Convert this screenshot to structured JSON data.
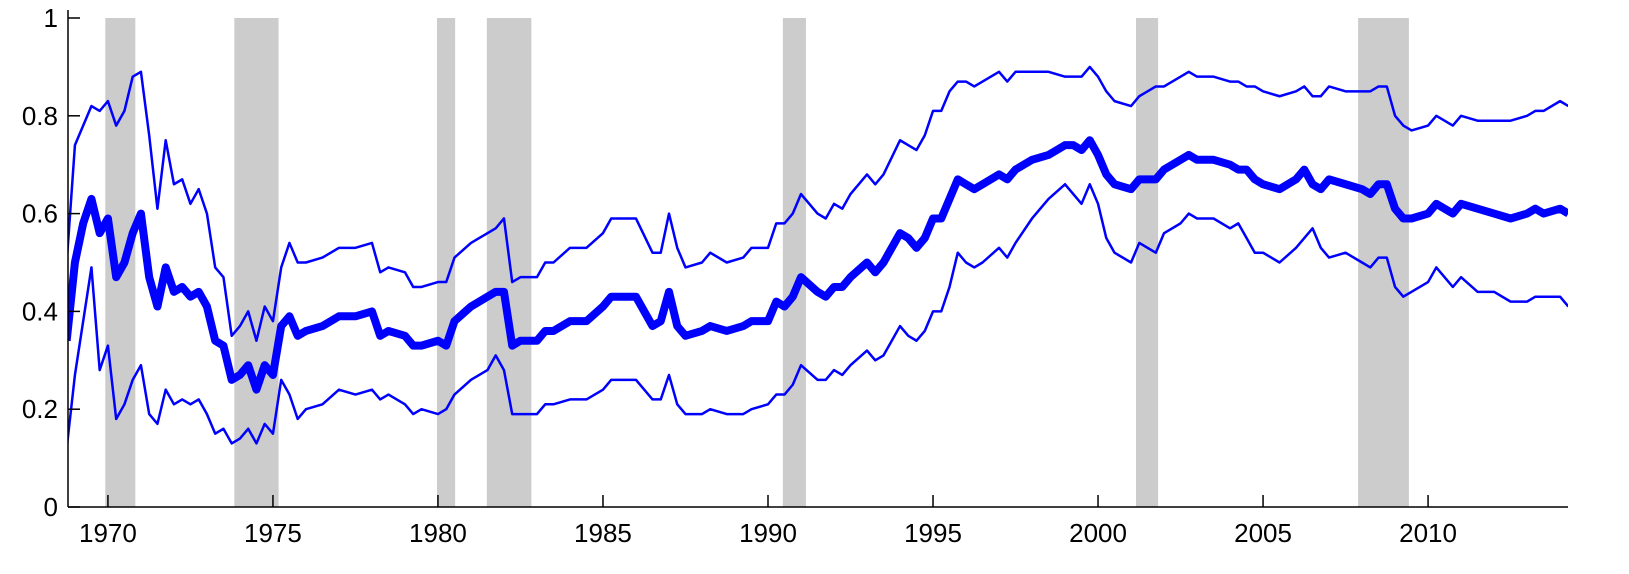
{
  "chart_data": {
    "type": "line",
    "x": [
      1968.75,
      1969.0,
      1969.25,
      1969.5,
      1969.75,
      1970.0,
      1970.25,
      1970.5,
      1970.75,
      1971.0,
      1971.25,
      1971.5,
      1971.75,
      1972.0,
      1972.25,
      1972.5,
      1972.75,
      1973.0,
      1973.25,
      1973.5,
      1973.75,
      1974.0,
      1974.25,
      1974.5,
      1974.75,
      1975.0,
      1975.25,
      1975.5,
      1975.75,
      1976.0,
      1976.5,
      1977.0,
      1977.5,
      1978.0,
      1978.25,
      1978.5,
      1979.0,
      1979.25,
      1979.5,
      1980.0,
      1980.25,
      1980.5,
      1981.0,
      1981.5,
      1981.75,
      1982.0,
      1982.25,
      1982.5,
      1983.0,
      1983.25,
      1983.5,
      1984.0,
      1984.5,
      1985.0,
      1985.25,
      1985.75,
      1986.0,
      1986.5,
      1986.75,
      1987.0,
      1987.25,
      1987.5,
      1988.0,
      1988.25,
      1988.75,
      1989.25,
      1989.5,
      1990.0,
      1990.25,
      1990.5,
      1990.75,
      1991.0,
      1991.5,
      1991.75,
      1992.0,
      1992.25,
      1992.5,
      1993.0,
      1993.25,
      1993.5,
      1994.0,
      1994.25,
      1994.5,
      1994.75,
      1995.0,
      1995.25,
      1995.5,
      1995.75,
      1996.0,
      1996.25,
      1996.5,
      1997.0,
      1997.25,
      1997.5,
      1998.0,
      1998.5,
      1999.0,
      1999.25,
      1999.5,
      1999.75,
      2000.0,
      2000.25,
      2000.5,
      2001.0,
      2001.25,
      2001.75,
      2002.0,
      2002.5,
      2002.75,
      2003.0,
      2003.5,
      2004.0,
      2004.25,
      2004.5,
      2004.75,
      2005.0,
      2005.5,
      2006.0,
      2006.25,
      2006.5,
      2006.75,
      2007.0,
      2007.5,
      2008.0,
      2008.25,
      2008.5,
      2008.75,
      2009.0,
      2009.25,
      2009.5,
      2010.0,
      2010.25,
      2010.75,
      2011.0,
      2011.5,
      2012.0,
      2012.5,
      2013.0,
      2013.25,
      2013.5,
      2014.0,
      2014.25
    ],
    "series": [
      {
        "color": "#0000ff",
        "linewidth": 2.5,
        "values": [
          0.5,
          0.74,
          0.78,
          0.82,
          0.81,
          0.83,
          0.78,
          0.81,
          0.88,
          0.89,
          0.76,
          0.61,
          0.75,
          0.66,
          0.67,
          0.62,
          0.65,
          0.6,
          0.49,
          0.47,
          0.35,
          0.37,
          0.4,
          0.34,
          0.41,
          0.38,
          0.49,
          0.54,
          0.5,
          0.5,
          0.51,
          0.53,
          0.53,
          0.54,
          0.48,
          0.49,
          0.48,
          0.45,
          0.45,
          0.46,
          0.46,
          0.51,
          0.54,
          0.56,
          0.57,
          0.59,
          0.46,
          0.47,
          0.47,
          0.5,
          0.5,
          0.53,
          0.53,
          0.56,
          0.59,
          0.59,
          0.59,
          0.52,
          0.52,
          0.6,
          0.53,
          0.49,
          0.5,
          0.52,
          0.5,
          0.51,
          0.53,
          0.53,
          0.58,
          0.58,
          0.6,
          0.64,
          0.6,
          0.59,
          0.62,
          0.61,
          0.64,
          0.68,
          0.66,
          0.68,
          0.75,
          0.74,
          0.73,
          0.76,
          0.81,
          0.81,
          0.85,
          0.87,
          0.87,
          0.86,
          0.87,
          0.89,
          0.87,
          0.89,
          0.89,
          0.89,
          0.88,
          0.88,
          0.88,
          0.9,
          0.88,
          0.85,
          0.83,
          0.82,
          0.84,
          0.86,
          0.86,
          0.88,
          0.89,
          0.88,
          0.88,
          0.87,
          0.87,
          0.86,
          0.86,
          0.85,
          0.84,
          0.85,
          0.86,
          0.84,
          0.84,
          0.86,
          0.85,
          0.85,
          0.85,
          0.86,
          0.86,
          0.8,
          0.78,
          0.77,
          0.78,
          0.8,
          0.78,
          0.8,
          0.79,
          0.79,
          0.79,
          0.8,
          0.81,
          0.81,
          0.83,
          0.82
        ]
      },
      {
        "color": "#0000ff",
        "linewidth": 2.5,
        "values": [
          0.12,
          0.27,
          0.38,
          0.49,
          0.28,
          0.33,
          0.18,
          0.21,
          0.26,
          0.29,
          0.19,
          0.17,
          0.24,
          0.21,
          0.22,
          0.21,
          0.22,
          0.19,
          0.15,
          0.16,
          0.13,
          0.14,
          0.16,
          0.13,
          0.17,
          0.15,
          0.26,
          0.23,
          0.18,
          0.2,
          0.21,
          0.24,
          0.23,
          0.24,
          0.22,
          0.23,
          0.21,
          0.19,
          0.2,
          0.19,
          0.2,
          0.23,
          0.26,
          0.28,
          0.31,
          0.28,
          0.19,
          0.19,
          0.19,
          0.21,
          0.21,
          0.22,
          0.22,
          0.24,
          0.26,
          0.26,
          0.26,
          0.22,
          0.22,
          0.27,
          0.21,
          0.19,
          0.19,
          0.2,
          0.19,
          0.19,
          0.2,
          0.21,
          0.23,
          0.23,
          0.25,
          0.29,
          0.26,
          0.26,
          0.28,
          0.27,
          0.29,
          0.32,
          0.3,
          0.31,
          0.37,
          0.35,
          0.34,
          0.36,
          0.4,
          0.4,
          0.45,
          0.52,
          0.5,
          0.49,
          0.5,
          0.53,
          0.51,
          0.54,
          0.59,
          0.63,
          0.66,
          0.64,
          0.62,
          0.66,
          0.62,
          0.55,
          0.52,
          0.5,
          0.54,
          0.52,
          0.56,
          0.58,
          0.6,
          0.59,
          0.59,
          0.57,
          0.58,
          0.55,
          0.52,
          0.52,
          0.5,
          0.53,
          0.55,
          0.57,
          0.53,
          0.51,
          0.52,
          0.5,
          0.49,
          0.51,
          0.51,
          0.45,
          0.43,
          0.44,
          0.46,
          0.49,
          0.45,
          0.47,
          0.44,
          0.44,
          0.42,
          0.42,
          0.43,
          0.43,
          0.43,
          0.41
        ]
      },
      {
        "color": "#0000ff",
        "linewidth": 8,
        "values": [
          0.34,
          0.5,
          0.58,
          0.63,
          0.56,
          0.59,
          0.47,
          0.5,
          0.56,
          0.6,
          0.47,
          0.41,
          0.49,
          0.44,
          0.45,
          0.43,
          0.44,
          0.41,
          0.34,
          0.33,
          0.26,
          0.27,
          0.29,
          0.24,
          0.29,
          0.27,
          0.37,
          0.39,
          0.35,
          0.36,
          0.37,
          0.39,
          0.39,
          0.4,
          0.35,
          0.36,
          0.35,
          0.33,
          0.33,
          0.34,
          0.33,
          0.38,
          0.41,
          0.43,
          0.44,
          0.44,
          0.33,
          0.34,
          0.34,
          0.36,
          0.36,
          0.38,
          0.38,
          0.41,
          0.43,
          0.43,
          0.43,
          0.37,
          0.38,
          0.44,
          0.37,
          0.35,
          0.36,
          0.37,
          0.36,
          0.37,
          0.38,
          0.38,
          0.42,
          0.41,
          0.43,
          0.47,
          0.44,
          0.43,
          0.45,
          0.45,
          0.47,
          0.5,
          0.48,
          0.5,
          0.56,
          0.55,
          0.53,
          0.55,
          0.59,
          0.59,
          0.63,
          0.67,
          0.66,
          0.65,
          0.66,
          0.68,
          0.67,
          0.69,
          0.71,
          0.72,
          0.74,
          0.74,
          0.73,
          0.75,
          0.72,
          0.68,
          0.66,
          0.65,
          0.67,
          0.67,
          0.69,
          0.71,
          0.72,
          0.71,
          0.71,
          0.7,
          0.69,
          0.69,
          0.67,
          0.66,
          0.65,
          0.67,
          0.69,
          0.66,
          0.65,
          0.67,
          0.66,
          0.65,
          0.64,
          0.66,
          0.66,
          0.61,
          0.59,
          0.59,
          0.6,
          0.62,
          0.6,
          0.62,
          0.61,
          0.6,
          0.59,
          0.6,
          0.61,
          0.6,
          0.61,
          0.6
        ]
      }
    ],
    "shaded_regions": [
      [
        1969.92,
        1970.83
      ],
      [
        1973.83,
        1975.17
      ],
      [
        1979.97,
        1980.52
      ],
      [
        1981.48,
        1982.83
      ],
      [
        1990.45,
        1991.15
      ],
      [
        2001.15,
        2001.82
      ],
      [
        2007.88,
        2009.42
      ]
    ],
    "shade_color": "#cccccc",
    "xlim": [
      1968.79,
      2014.24
    ],
    "xticks": [
      1970,
      1975,
      1980,
      1985,
      1990,
      1995,
      2000,
      2005,
      2010
    ],
    "ylim": [
      0,
      1
    ],
    "yticks": [
      0,
      0.2,
      0.4,
      0.6,
      0.8,
      1
    ]
  }
}
